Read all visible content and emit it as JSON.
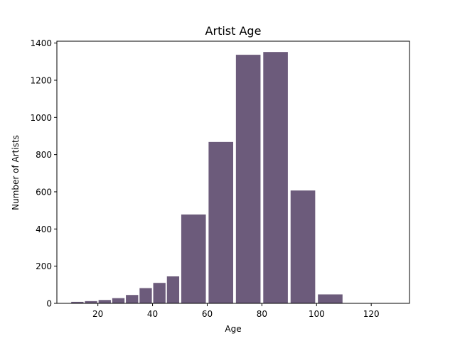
{
  "chart_data": {
    "type": "bar",
    "title": "Artist Age",
    "xlabel": "Age",
    "ylabel": "Number of Artists",
    "xlim": [
      5,
      134
    ],
    "ylim": [
      0,
      1410
    ],
    "x_ticks": [
      20,
      40,
      60,
      80,
      100,
      120
    ],
    "y_ticks": [
      0,
      200,
      400,
      600,
      800,
      1000,
      1200,
      1400
    ],
    "bar_color": "#6c5b7b",
    "grid": false,
    "bins": [
      {
        "start": 10,
        "end": 15,
        "value": 8
      },
      {
        "start": 15,
        "end": 20,
        "value": 12
      },
      {
        "start": 20,
        "end": 25,
        "value": 18
      },
      {
        "start": 25,
        "end": 30,
        "value": 28
      },
      {
        "start": 30,
        "end": 35,
        "value": 45
      },
      {
        "start": 35,
        "end": 40,
        "value": 82
      },
      {
        "start": 40,
        "end": 45,
        "value": 110
      },
      {
        "start": 45,
        "end": 50,
        "value": 145
      },
      {
        "start": 50,
        "end": 60,
        "value": 478
      },
      {
        "start": 60,
        "end": 70,
        "value": 868
      },
      {
        "start": 70,
        "end": 80,
        "value": 1337
      },
      {
        "start": 80,
        "end": 90,
        "value": 1352
      },
      {
        "start": 90,
        "end": 100,
        "value": 607
      },
      {
        "start": 100,
        "end": 110,
        "value": 48
      }
    ]
  }
}
